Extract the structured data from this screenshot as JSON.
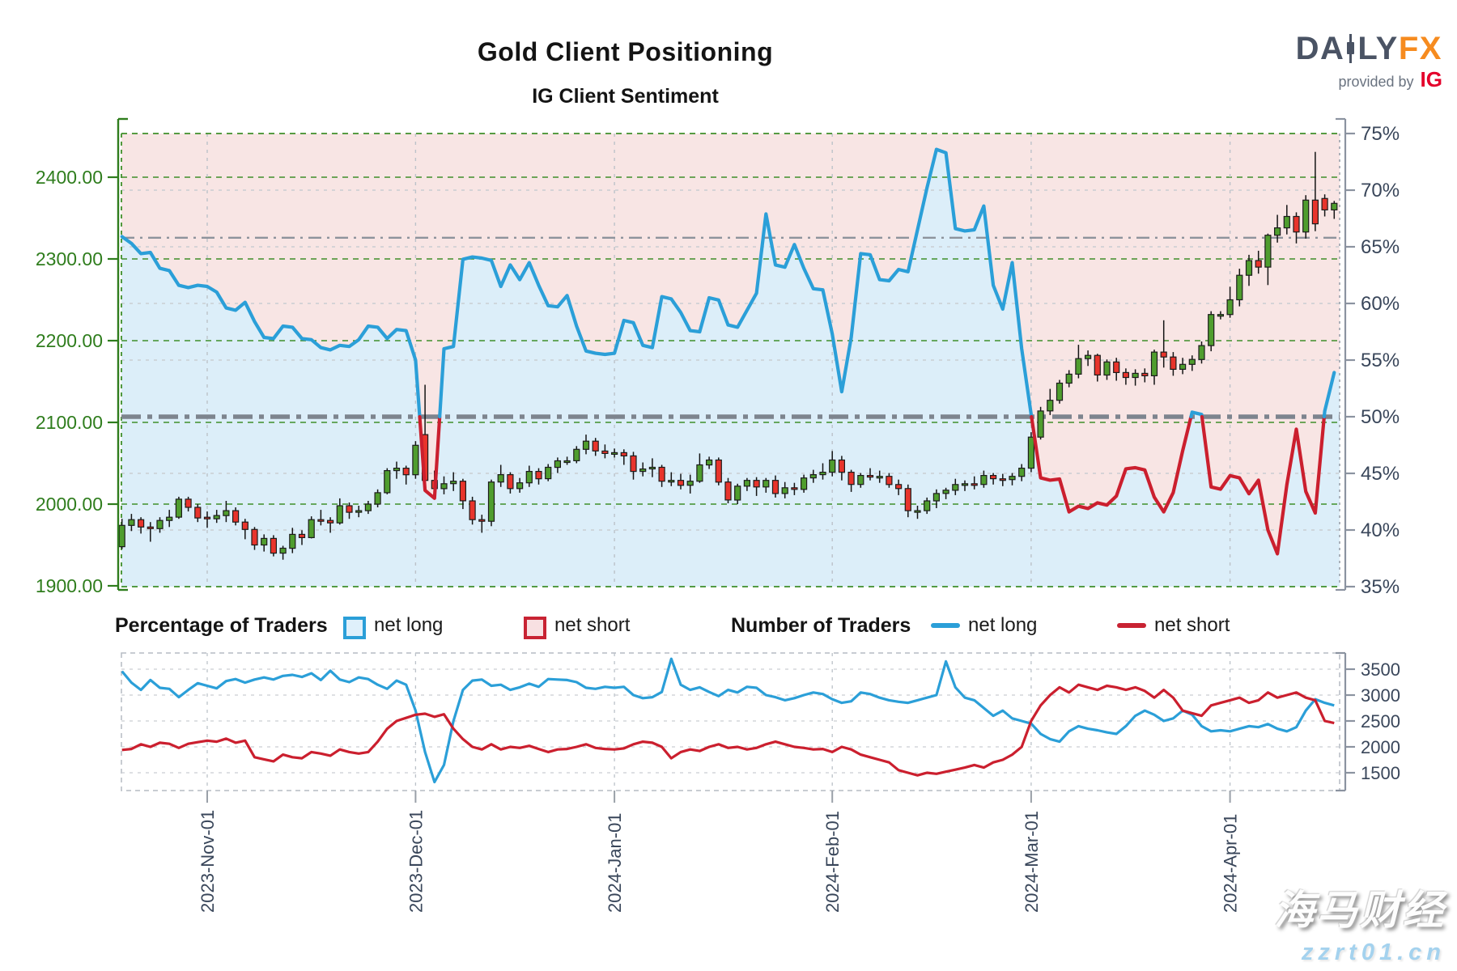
{
  "header": {
    "title": "Gold Client Positioning",
    "subtitle": "IG Client Sentiment"
  },
  "logo": {
    "part1": "DA",
    "part2": "LY",
    "part3": "FX",
    "tagline": "provided by",
    "brand": "IG"
  },
  "legend": {
    "pct_header": "Percentage of Traders",
    "num_header": "Number of Traders",
    "net_long": "net long",
    "net_short": "net short"
  },
  "watermark": {
    "line1": "海马财经",
    "line2": "zzrt01.cn"
  },
  "colors": {
    "net_long_line": "#2b9fd8",
    "net_short_line": "#cb1f2e",
    "long_fill": "#dceef9",
    "short_fill": "#f8e5e4",
    "candle_up": "#4f9d2e",
    "candle_down": "#e8342c",
    "candle_edge": "#1c1c1c",
    "price_axis_green": "#2f7d1d",
    "slate_label": "#39465a",
    "grid_gray": "#c9cdd2",
    "border_gray": "#b6bcc4",
    "dashdot_thick": "#7d848e",
    "dashdot_thin": "#8d939c",
    "logo_gray": "#4a5364",
    "logo_orange": "#f68b1f",
    "ig_red": "#e4002b"
  },
  "chart_data": [
    {
      "type": "candlestick+line",
      "title": "IG Client Sentiment",
      "price_axis": {
        "side": "left",
        "ticks": [
          2400,
          2300,
          2200,
          2100,
          2000,
          1900
        ],
        "format": "0.00"
      },
      "pct_axis": {
        "side": "right",
        "ticks": [
          75,
          70,
          65,
          60,
          55,
          50,
          45,
          40,
          35
        ],
        "min": 35,
        "max": 75
      },
      "reference_lines": {
        "thick_dashdot_pct": 50,
        "thin_dashdot_pct": 65.8
      },
      "gray_grid_pct": [
        70,
        65,
        60,
        55,
        45,
        40
      ],
      "months": [
        {
          "label": "2023-Nov-01",
          "index": 9
        },
        {
          "label": "2023-Dec-01",
          "index": 31
        },
        {
          "label": "2024-Jan-01",
          "index": 52
        },
        {
          "label": "2024-Feb-01",
          "index": 75
        },
        {
          "label": "2024-Mar-01",
          "index": 96
        },
        {
          "label": "2024-Apr-01",
          "index": 117
        }
      ],
      "candles": [
        [
          1948,
          1982,
          1945,
          1974
        ],
        [
          1974,
          1988,
          1967,
          1981
        ],
        [
          1981,
          1984,
          1964,
          1972
        ],
        [
          1972,
          1978,
          1954,
          1970
        ],
        [
          1970,
          1984,
          1965,
          1980
        ],
        [
          1980,
          1993,
          1972,
          1984
        ],
        [
          1984,
          2009,
          1982,
          2006
        ],
        [
          2006,
          2009,
          1991,
          1996
        ],
        [
          1996,
          2000,
          1978,
          1983
        ],
        [
          1984,
          1991,
          1971,
          1982
        ],
        [
          1982,
          1993,
          1977,
          1986
        ],
        [
          1986,
          2004,
          1978,
          1992
        ],
        [
          1992,
          1996,
          1974,
          1978
        ],
        [
          1978,
          1982,
          1957,
          1969
        ],
        [
          1969,
          1972,
          1944,
          1950
        ],
        [
          1950,
          1963,
          1942,
          1958
        ],
        [
          1958,
          1962,
          1936,
          1940
        ],
        [
          1940,
          1949,
          1932,
          1946
        ],
        [
          1946,
          1971,
          1940,
          1963
        ],
        [
          1963,
          1968,
          1950,
          1959
        ],
        [
          1959,
          1985,
          1958,
          1981
        ],
        [
          1981,
          1993,
          1974,
          1980
        ],
        [
          1980,
          1984,
          1965,
          1977
        ],
        [
          1977,
          2007,
          1975,
          1998
        ],
        [
          1998,
          2002,
          1982,
          1990
        ],
        [
          1990,
          1998,
          1984,
          1992
        ],
        [
          1992,
          2004,
          1988,
          2000
        ],
        [
          2000,
          2018,
          1996,
          2014
        ],
        [
          2014,
          2044,
          2012,
          2041
        ],
        [
          2041,
          2052,
          2031,
          2044
        ],
        [
          2044,
          2047,
          2024,
          2036
        ],
        [
          2036,
          2077,
          2031,
          2072
        ],
        [
          2085,
          2146,
          2020,
          2029
        ],
        [
          2029,
          2041,
          2009,
          2019
        ],
        [
          2019,
          2034,
          2012,
          2025
        ],
        [
          2025,
          2039,
          2016,
          2028
        ],
        [
          2028,
          2031,
          1994,
          2004
        ],
        [
          2004,
          2009,
          1975,
          1981
        ],
        [
          1981,
          1987,
          1965,
          1979
        ],
        [
          1979,
          2030,
          1973,
          2027
        ],
        [
          2027,
          2048,
          2021,
          2036
        ],
        [
          2036,
          2039,
          2013,
          2019
        ],
        [
          2019,
          2032,
          2014,
          2026
        ],
        [
          2026,
          2047,
          2021,
          2040
        ],
        [
          2040,
          2044,
          2024,
          2031
        ],
        [
          2031,
          2049,
          2028,
          2045
        ],
        [
          2045,
          2057,
          2038,
          2053
        ],
        [
          2053,
          2058,
          2048,
          2053
        ],
        [
          2053,
          2071,
          2050,
          2067
        ],
        [
          2067,
          2085,
          2061,
          2077
        ],
        [
          2077,
          2081,
          2059,
          2065
        ],
        [
          2065,
          2073,
          2056,
          2062
        ],
        [
          2062,
          2068,
          2057,
          2063
        ],
        [
          2063,
          2067,
          2048,
          2059
        ],
        [
          2059,
          2064,
          2030,
          2040
        ],
        [
          2040,
          2051,
          2034,
          2043
        ],
        [
          2043,
          2056,
          2033,
          2045
        ],
        [
          2045,
          2048,
          2021,
          2028
        ],
        [
          2028,
          2039,
          2022,
          2029
        ],
        [
          2029,
          2037,
          2018,
          2023
        ],
        [
          2023,
          2036,
          2013,
          2028
        ],
        [
          2028,
          2062,
          2026,
          2048
        ],
        [
          2048,
          2058,
          2043,
          2054
        ],
        [
          2054,
          2057,
          2023,
          2027
        ],
        [
          2027,
          2032,
          2001,
          2005
        ],
        [
          2005,
          2025,
          2000,
          2022
        ],
        [
          2022,
          2032,
          2016,
          2029
        ],
        [
          2029,
          2033,
          2010,
          2021
        ],
        [
          2021,
          2032,
          2014,
          2029
        ],
        [
          2029,
          2035,
          2008,
          2013
        ],
        [
          2013,
          2027,
          2007,
          2020
        ],
        [
          2020,
          2026,
          2011,
          2018
        ],
        [
          2018,
          2036,
          2014,
          2032
        ],
        [
          2032,
          2042,
          2026,
          2036
        ],
        [
          2036,
          2050,
          2030,
          2039
        ],
        [
          2039,
          2065,
          2034,
          2054
        ],
        [
          2054,
          2059,
          2029,
          2039
        ],
        [
          2039,
          2042,
          2015,
          2024
        ],
        [
          2024,
          2038,
          2020,
          2035
        ],
        [
          2035,
          2044,
          2029,
          2033
        ],
        [
          2033,
          2041,
          2026,
          2034
        ],
        [
          2034,
          2038,
          2020,
          2024
        ],
        [
          2024,
          2030,
          2011,
          2019
        ],
        [
          2019,
          2024,
          1984,
          1992
        ],
        [
          1992,
          1998,
          1982,
          1992
        ],
        [
          1992,
          2008,
          1988,
          2004
        ],
        [
          2004,
          2018,
          1995,
          2013
        ],
        [
          2013,
          2020,
          2006,
          2017
        ],
        [
          2017,
          2031,
          2011,
          2024
        ],
        [
          2024,
          2029,
          2016,
          2025
        ],
        [
          2025,
          2034,
          2018,
          2024
        ],
        [
          2024,
          2041,
          2020,
          2035
        ],
        [
          2035,
          2038,
          2024,
          2031
        ],
        [
          2031,
          2037,
          2022,
          2030
        ],
        [
          2030,
          2038,
          2023,
          2034
        ],
        [
          2034,
          2049,
          2028,
          2044
        ],
        [
          2044,
          2088,
          2039,
          2082
        ],
        [
          2082,
          2119,
          2079,
          2114
        ],
        [
          2114,
          2141,
          2109,
          2127
        ],
        [
          2127,
          2152,
          2123,
          2148
        ],
        [
          2148,
          2164,
          2143,
          2159
        ],
        [
          2159,
          2195,
          2154,
          2178
        ],
        [
          2178,
          2188,
          2169,
          2182
        ],
        [
          2182,
          2184,
          2150,
          2158
        ],
        [
          2158,
          2177,
          2152,
          2174
        ],
        [
          2174,
          2179,
          2151,
          2161
        ],
        [
          2161,
          2166,
          2146,
          2155
        ],
        [
          2155,
          2165,
          2145,
          2160
        ],
        [
          2160,
          2166,
          2149,
          2157
        ],
        [
          2157,
          2189,
          2146,
          2186
        ],
        [
          2186,
          2225,
          2167,
          2180
        ],
        [
          2180,
          2186,
          2157,
          2165
        ],
        [
          2165,
          2179,
          2159,
          2171
        ],
        [
          2171,
          2182,
          2163,
          2177
        ],
        [
          2177,
          2199,
          2172,
          2194
        ],
        [
          2194,
          2236,
          2187,
          2232
        ],
        [
          2232,
          2236,
          2226,
          2232
        ],
        [
          2232,
          2266,
          2228,
          2250
        ],
        [
          2250,
          2288,
          2242,
          2280
        ],
        [
          2280,
          2305,
          2267,
          2298
        ],
        [
          2298,
          2310,
          2282,
          2290
        ],
        [
          2290,
          2331,
          2268,
          2329
        ],
        [
          2329,
          2354,
          2320,
          2338
        ],
        [
          2338,
          2366,
          2330,
          2352
        ],
        [
          2352,
          2357,
          2319,
          2333
        ],
        [
          2333,
          2378,
          2325,
          2372
        ],
        [
          2372,
          2431,
          2334,
          2343
        ],
        [
          2374,
          2379,
          2352,
          2360
        ],
        [
          2360,
          2371,
          2349,
          2368
        ]
      ],
      "net_long_pct": [
        65.9,
        65.3,
        64.4,
        64.5,
        63.1,
        62.9,
        61.6,
        61.4,
        61.6,
        61.5,
        61.0,
        59.6,
        59.4,
        60.1,
        58.4,
        57.0,
        56.9,
        58.0,
        57.9,
        56.9,
        56.8,
        56.1,
        55.9,
        56.3,
        56.2,
        56.8,
        58.0,
        57.9,
        56.9,
        57.7,
        57.6,
        55.0,
        43.5,
        42.8,
        56.0,
        56.2,
        63.9,
        64.1,
        64.0,
        63.8,
        61.5,
        63.4,
        62.1,
        63.6,
        61.6,
        59.8,
        59.7,
        60.7,
        58.0,
        55.8,
        55.6,
        55.5,
        55.6,
        58.5,
        58.3,
        56.3,
        56.1,
        60.6,
        60.4,
        59.2,
        57.6,
        57.5,
        60.5,
        60.3,
        58.1,
        57.9,
        59.4,
        60.9,
        67.9,
        63.4,
        63.2,
        65.2,
        63.1,
        61.3,
        61.2,
        57.3,
        52.2,
        57.0,
        64.4,
        64.3,
        62.1,
        62.0,
        63.0,
        62.8,
        66.5,
        70.2,
        73.6,
        73.3,
        66.6,
        66.4,
        66.5,
        68.6,
        61.6,
        59.5,
        63.6,
        56.0,
        50.2,
        44.6,
        44.4,
        44.5,
        41.6,
        42.1,
        41.9,
        42.4,
        42.2,
        43.0,
        45.4,
        45.5,
        45.3,
        42.9,
        41.6,
        43.3,
        47.0,
        50.4,
        50.2,
        43.8,
        43.6,
        44.8,
        44.6,
        43.2,
        44.4,
        40.0,
        37.9,
        44.0,
        48.9,
        43.4,
        41.5,
        50.5,
        53.9
      ]
    },
    {
      "type": "line",
      "y_axis": {
        "side": "right",
        "ticks": [
          3500,
          3000,
          2500,
          2000,
          1500
        ]
      },
      "series": [
        {
          "name": "net long",
          "values": [
            3460,
            3240,
            3100,
            3290,
            3140,
            3120,
            2960,
            3100,
            3230,
            3180,
            3130,
            3270,
            3310,
            3240,
            3300,
            3340,
            3300,
            3370,
            3390,
            3350,
            3420,
            3290,
            3470,
            3300,
            3250,
            3340,
            3310,
            3200,
            3120,
            3280,
            3200,
            2700,
            1900,
            1320,
            1650,
            2500,
            3100,
            3280,
            3300,
            3180,
            3200,
            3100,
            3150,
            3220,
            3160,
            3310,
            3300,
            3290,
            3250,
            3140,
            3120,
            3160,
            3140,
            3160,
            3000,
            2940,
            2960,
            3060,
            3700,
            3200,
            3100,
            3150,
            3060,
            2980,
            3100,
            3050,
            3160,
            3140,
            3000,
            2960,
            2900,
            2940,
            3000,
            3050,
            3020,
            2920,
            2850,
            2880,
            3050,
            3020,
            2950,
            2900,
            2870,
            2850,
            2900,
            2950,
            3000,
            3650,
            3150,
            2950,
            2900,
            2750,
            2600,
            2700,
            2550,
            2500,
            2450,
            2250,
            2150,
            2100,
            2300,
            2400,
            2350,
            2320,
            2280,
            2250,
            2400,
            2600,
            2700,
            2620,
            2500,
            2550,
            2700,
            2620,
            2400,
            2300,
            2320,
            2300,
            2350,
            2400,
            2380,
            2440,
            2350,
            2300,
            2380,
            2700,
            2920,
            2850,
            2800
          ]
        },
        {
          "name": "net short",
          "values": [
            1940,
            1960,
            2050,
            2000,
            2080,
            2060,
            1980,
            2060,
            2090,
            2120,
            2100,
            2160,
            2080,
            2120,
            1800,
            1760,
            1720,
            1850,
            1800,
            1780,
            1900,
            1870,
            1830,
            1950,
            1900,
            1870,
            1900,
            2100,
            2350,
            2500,
            2560,
            2620,
            2640,
            2580,
            2630,
            2350,
            2150,
            2000,
            1950,
            2050,
            1950,
            2000,
            1980,
            2020,
            1960,
            1900,
            1950,
            1960,
            2000,
            2050,
            1980,
            1960,
            1950,
            1970,
            2050,
            2100,
            2080,
            2000,
            1780,
            1900,
            1950,
            1920,
            2000,
            2050,
            1980,
            2000,
            1950,
            1980,
            2050,
            2100,
            2050,
            2000,
            1980,
            1950,
            1960,
            1900,
            2000,
            1950,
            1850,
            1800,
            1750,
            1700,
            1550,
            1500,
            1450,
            1500,
            1480,
            1520,
            1560,
            1600,
            1650,
            1600,
            1700,
            1750,
            1850,
            2000,
            2500,
            2800,
            3000,
            3150,
            3050,
            3200,
            3150,
            3100,
            3180,
            3150,
            3100,
            3150,
            3080,
            2950,
            3100,
            2950,
            2700,
            2650,
            2600,
            2800,
            2850,
            2900,
            2950,
            2850,
            2900,
            3050,
            2950,
            3000,
            3050,
            2950,
            2900,
            2500,
            2460
          ]
        }
      ]
    }
  ]
}
